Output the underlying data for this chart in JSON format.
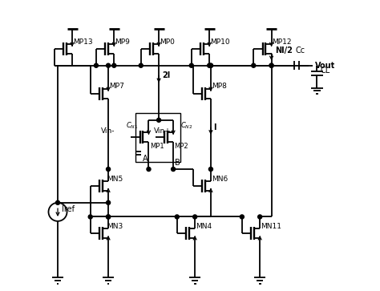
{
  "figsize": [
    4.74,
    3.63
  ],
  "dpi": 100,
  "bg": "#ffffff",
  "lw": 1.3,
  "transistors": {
    "MP13": {
      "gx": 0.03,
      "gy": 0.835,
      "type": "P"
    },
    "MP9": {
      "gx": 0.175,
      "gy": 0.835,
      "type": "P"
    },
    "MP0": {
      "gx": 0.33,
      "gy": 0.835,
      "type": "P"
    },
    "MP10": {
      "gx": 0.505,
      "gy": 0.835,
      "type": "P"
    },
    "MP12": {
      "gx": 0.72,
      "gy": 0.835,
      "type": "P"
    },
    "MP7": {
      "gx": 0.155,
      "gy": 0.68,
      "type": "P"
    },
    "MP8": {
      "gx": 0.51,
      "gy": 0.68,
      "type": "P"
    },
    "MP1": {
      "gx": 0.295,
      "gy": 0.53,
      "type": "P"
    },
    "MP2": {
      "gx": 0.38,
      "gy": 0.53,
      "type": "P"
    },
    "MN5": {
      "gx": 0.155,
      "gy": 0.36,
      "type": "N"
    },
    "MN6": {
      "gx": 0.51,
      "gy": 0.36,
      "type": "N"
    },
    "MN3": {
      "gx": 0.155,
      "gy": 0.195,
      "type": "N"
    },
    "MN4": {
      "gx": 0.455,
      "gy": 0.195,
      "type": "N"
    },
    "MN11": {
      "gx": 0.68,
      "gy": 0.195,
      "type": "N"
    }
  },
  "labels": {
    "MP13": [
      -0.005,
      0.01,
      8
    ],
    "MP9": [
      0.005,
      0.01,
      8
    ],
    "MP0": [
      0.005,
      0.01,
      8
    ],
    "MP10": [
      0.005,
      0.01,
      8
    ],
    "MP12": [
      0.005,
      0.01,
      8
    ],
    "MP7": [
      0.005,
      0.01,
      8
    ],
    "MP8": [
      0.005,
      0.01,
      8
    ],
    "MP1": [
      0.002,
      -0.03,
      7
    ],
    "MP2": [
      0.002,
      -0.03,
      7
    ],
    "MN5": [
      -0.01,
      0.01,
      8
    ],
    "MN6": [
      0.005,
      0.01,
      8
    ],
    "MN3": [
      -0.01,
      0.01,
      8
    ],
    "MN4": [
      0.005,
      0.01,
      8
    ],
    "MN11": [
      0.005,
      0.01,
      8
    ]
  }
}
